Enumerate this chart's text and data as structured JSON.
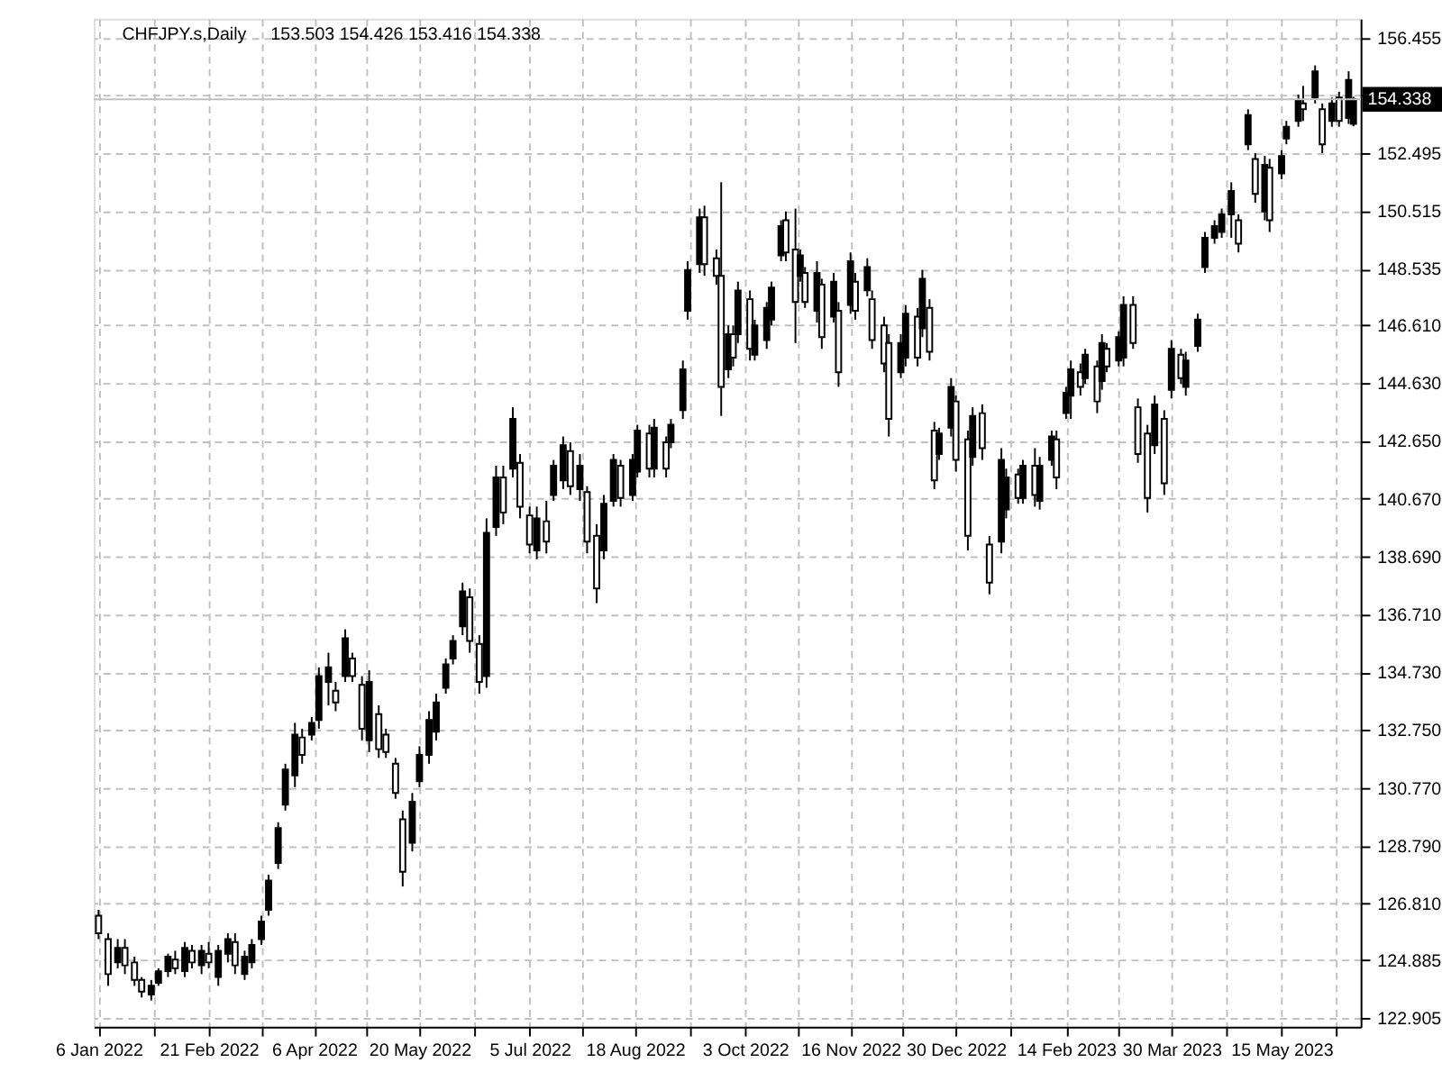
{
  "chart_data": {
    "type": "candlestick",
    "title": "CHFJPY.s,Daily",
    "subtitle": "153.503 154.426 153.416 154.338",
    "x": [
      "2022-01-06",
      "2022-01-10",
      "2022-01-14",
      "2022-01-17",
      "2022-01-21",
      "2022-01-24",
      "2022-01-28",
      "2022-01-31",
      "2022-02-04",
      "2022-02-07",
      "2022-02-11",
      "2022-02-14",
      "2022-02-18",
      "2022-02-21",
      "2022-02-25",
      "2022-03-01",
      "2022-03-04",
      "2022-03-08",
      "2022-03-11",
      "2022-03-15",
      "2022-03-18",
      "2022-03-22",
      "2022-03-25",
      "2022-03-29",
      "2022-04-01",
      "2022-04-05",
      "2022-04-08",
      "2022-04-12",
      "2022-04-15",
      "2022-04-19",
      "2022-04-22",
      "2022-04-26",
      "2022-04-29",
      "2022-05-03",
      "2022-05-06",
      "2022-05-10",
      "2022-05-13",
      "2022-05-17",
      "2022-05-20",
      "2022-05-24",
      "2022-05-27",
      "2022-05-31",
      "2022-06-03",
      "2022-06-07",
      "2022-06-10",
      "2022-06-14",
      "2022-06-17",
      "2022-06-21",
      "2022-06-24",
      "2022-06-28",
      "2022-07-01",
      "2022-07-05",
      "2022-07-08",
      "2022-07-12",
      "2022-07-15",
      "2022-07-19",
      "2022-07-22",
      "2022-07-26",
      "2022-07-29",
      "2022-08-02",
      "2022-08-05",
      "2022-08-09",
      "2022-08-12",
      "2022-08-17",
      "2022-08-19",
      "2022-08-24",
      "2022-08-26",
      "2022-08-31",
      "2022-09-02",
      "2022-09-07",
      "2022-09-09",
      "2022-09-14",
      "2022-09-16",
      "2022-09-21",
      "2022-09-23",
      "2022-09-26",
      "2022-09-28",
      "2022-09-30",
      "2022-10-05",
      "2022-10-07",
      "2022-10-12",
      "2022-10-14",
      "2022-10-18",
      "2022-10-20",
      "2022-10-24",
      "2022-10-26",
      "2022-10-28",
      "2022-11-02",
      "2022-11-04",
      "2022-11-09",
      "2022-11-11",
      "2022-11-16",
      "2022-11-18",
      "2022-11-23",
      "2022-11-25",
      "2022-11-30",
      "2022-12-02",
      "2022-12-07",
      "2022-12-09",
      "2022-12-14",
      "2022-12-16",
      "2022-12-19",
      "2022-12-21",
      "2022-12-23",
      "2022-12-28",
      "2022-12-30",
      "2023-01-04",
      "2023-01-06",
      "2023-01-10",
      "2023-01-13",
      "2023-01-18",
      "2023-01-20",
      "2023-01-25",
      "2023-01-27",
      "2023-02-01",
      "2023-02-03",
      "2023-02-08",
      "2023-02-10",
      "2023-02-14",
      "2023-02-16",
      "2023-02-20",
      "2023-02-22",
      "2023-02-27",
      "2023-03-01",
      "2023-03-03",
      "2023-03-08",
      "2023-03-10",
      "2023-03-14",
      "2023-03-16",
      "2023-03-20",
      "2023-03-23",
      "2023-03-27",
      "2023-03-30",
      "2023-04-03",
      "2023-04-05",
      "2023-04-10",
      "2023-04-13",
      "2023-04-17",
      "2023-04-20",
      "2023-04-24",
      "2023-04-27",
      "2023-05-01",
      "2023-05-04",
      "2023-05-08",
      "2023-05-10",
      "2023-05-15",
      "2023-05-17",
      "2023-05-22",
      "2023-05-24",
      "2023-05-29",
      "2023-06-01",
      "2023-06-05",
      "2023-06-08",
      "2023-06-12",
      "2023-06-14"
    ],
    "ohlc": [
      [
        126.4,
        126.6,
        125.6,
        125.8
      ],
      [
        125.6,
        125.8,
        124.0,
        124.4
      ],
      [
        124.8,
        125.6,
        124.6,
        125.3
      ],
      [
        125.3,
        125.6,
        124.4,
        124.7
      ],
      [
        124.8,
        125.0,
        124.0,
        124.2
      ],
      [
        124.2,
        124.3,
        123.6,
        123.8
      ],
      [
        123.7,
        124.2,
        123.5,
        124.0
      ],
      [
        124.1,
        124.6,
        124.0,
        124.5
      ],
      [
        124.5,
        125.1,
        124.3,
        125.0
      ],
      [
        124.9,
        125.2,
        124.4,
        124.6
      ],
      [
        124.5,
        125.5,
        124.3,
        125.3
      ],
      [
        125.2,
        125.4,
        124.6,
        124.8
      ],
      [
        124.7,
        125.4,
        124.4,
        125.2
      ],
      [
        125.1,
        125.5,
        124.6,
        124.8
      ],
      [
        124.3,
        125.4,
        124.0,
        125.2
      ],
      [
        125.1,
        125.8,
        124.8,
        125.6
      ],
      [
        125.5,
        125.8,
        124.4,
        124.7
      ],
      [
        124.4,
        125.2,
        124.2,
        125.0
      ],
      [
        124.8,
        125.6,
        124.6,
        125.4
      ],
      [
        125.6,
        126.4,
        125.4,
        126.2
      ],
      [
        126.6,
        127.8,
        126.4,
        127.6
      ],
      [
        128.2,
        129.6,
        128.0,
        129.4
      ],
      [
        130.2,
        131.6,
        130.0,
        131.4
      ],
      [
        131.2,
        133.0,
        130.8,
        132.6
      ],
      [
        132.5,
        132.8,
        131.6,
        131.9
      ],
      [
        132.6,
        133.2,
        132.4,
        133.0
      ],
      [
        133.1,
        134.9,
        132.8,
        134.6
      ],
      [
        134.4,
        135.4,
        133.6,
        134.9
      ],
      [
        134.1,
        134.4,
        133.4,
        133.7
      ],
      [
        134.6,
        136.2,
        134.4,
        135.9
      ],
      [
        135.2,
        135.4,
        134.4,
        134.6
      ],
      [
        134.3,
        134.6,
        132.4,
        132.8
      ],
      [
        132.4,
        134.8,
        132.0,
        134.4
      ],
      [
        133.3,
        133.6,
        131.8,
        132.1
      ],
      [
        132.6,
        132.8,
        131.8,
        132.0
      ],
      [
        131.6,
        131.8,
        130.4,
        130.6
      ],
      [
        129.7,
        130.0,
        127.4,
        127.9
      ],
      [
        128.9,
        130.6,
        128.6,
        130.3
      ],
      [
        131.0,
        132.2,
        130.8,
        131.9
      ],
      [
        131.9,
        133.4,
        131.6,
        133.1
      ],
      [
        132.7,
        134.0,
        132.4,
        133.7
      ],
      [
        134.2,
        135.2,
        134.0,
        135.0
      ],
      [
        135.2,
        136.0,
        135.0,
        135.8
      ],
      [
        136.3,
        137.8,
        136.0,
        137.5
      ],
      [
        137.3,
        137.6,
        135.4,
        135.8
      ],
      [
        135.7,
        136.0,
        134.0,
        134.4
      ],
      [
        134.6,
        140.0,
        134.2,
        139.5
      ],
      [
        139.7,
        141.8,
        139.4,
        141.4
      ],
      [
        141.4,
        141.8,
        139.8,
        140.2
      ],
      [
        141.7,
        143.8,
        141.4,
        143.4
      ],
      [
        141.9,
        142.2,
        140.0,
        140.4
      ],
      [
        140.1,
        140.4,
        138.8,
        139.1
      ],
      [
        138.9,
        140.4,
        138.6,
        140.0
      ],
      [
        139.9,
        140.6,
        138.8,
        139.2
      ],
      [
        140.8,
        142.0,
        140.6,
        141.8
      ],
      [
        141.3,
        142.8,
        141.0,
        142.5
      ],
      [
        142.3,
        142.6,
        140.8,
        141.1
      ],
      [
        141.0,
        142.2,
        140.6,
        141.8
      ],
      [
        140.9,
        141.1,
        138.8,
        139.2
      ],
      [
        139.4,
        139.8,
        137.1,
        137.6
      ],
      [
        138.9,
        140.8,
        138.6,
        140.5
      ],
      [
        140.6,
        142.2,
        140.4,
        142.0
      ],
      [
        141.8,
        142.0,
        140.4,
        140.7
      ],
      [
        140.8,
        142.2,
        140.6,
        142.0
      ],
      [
        141.6,
        143.2,
        141.4,
        143.0
      ],
      [
        142.9,
        143.2,
        141.4,
        141.7
      ],
      [
        141.7,
        143.4,
        141.4,
        143.1
      ],
      [
        142.6,
        142.8,
        141.4,
        141.7
      ],
      [
        142.6,
        143.4,
        142.4,
        143.2
      ],
      [
        143.7,
        145.4,
        143.4,
        145.1
      ],
      [
        147.1,
        148.8,
        146.8,
        148.5
      ],
      [
        148.7,
        150.6,
        148.4,
        150.3
      ],
      [
        150.3,
        150.7,
        148.3,
        148.7
      ],
      [
        148.9,
        149.2,
        148.0,
        148.3
      ],
      [
        148.3,
        151.5,
        143.5,
        144.5
      ],
      [
        145.1,
        146.6,
        144.8,
        146.3
      ],
      [
        146.3,
        146.6,
        145.2,
        145.5
      ],
      [
        146.3,
        148.1,
        146.0,
        147.8
      ],
      [
        147.5,
        147.8,
        145.4,
        145.8
      ],
      [
        145.6,
        146.8,
        145.4,
        146.6
      ],
      [
        146.1,
        147.4,
        145.8,
        147.2
      ],
      [
        146.8,
        148.1,
        146.6,
        147.9
      ],
      [
        149.0,
        150.2,
        148.8,
        150.0
      ],
      [
        150.2,
        150.5,
        148.8,
        149.1
      ],
      [
        149.2,
        150.6,
        146.0,
        147.4
      ],
      [
        148.3,
        149.2,
        148.1,
        149.0
      ],
      [
        148.4,
        148.6,
        147.2,
        147.4
      ],
      [
        147.1,
        148.8,
        146.7,
        148.4
      ],
      [
        148.0,
        148.2,
        145.8,
        146.2
      ],
      [
        146.9,
        148.4,
        146.7,
        148.1
      ],
      [
        147.1,
        147.4,
        144.5,
        145.0
      ],
      [
        147.3,
        149.1,
        147.0,
        148.8
      ],
      [
        148.1,
        148.4,
        146.8,
        147.1
      ],
      [
        147.8,
        148.9,
        147.6,
        148.6
      ],
      [
        147.5,
        147.8,
        145.8,
        146.1
      ],
      [
        146.6,
        146.9,
        145.0,
        145.3
      ],
      [
        146.0,
        146.3,
        142.8,
        143.4
      ],
      [
        145.0,
        146.3,
        144.8,
        146.0
      ],
      [
        145.5,
        147.3,
        145.2,
        147.0
      ],
      [
        146.9,
        147.2,
        145.2,
        145.5
      ],
      [
        146.5,
        148.5,
        146.2,
        148.2
      ],
      [
        147.2,
        147.5,
        145.4,
        145.7
      ],
      [
        143.0,
        143.3,
        141.0,
        141.3
      ],
      [
        142.2,
        143.1,
        142.0,
        142.9
      ],
      [
        143.1,
        144.8,
        142.8,
        144.5
      ],
      [
        144.0,
        144.2,
        141.6,
        142.0
      ],
      [
        142.7,
        143.0,
        138.9,
        139.4
      ],
      [
        142.1,
        143.8,
        141.8,
        143.5
      ],
      [
        143.6,
        143.9,
        142.0,
        142.4
      ],
      [
        139.1,
        139.4,
        137.4,
        137.8
      ],
      [
        139.2,
        142.4,
        138.8,
        142.0
      ],
      [
        140.3,
        141.7,
        140.0,
        141.4
      ],
      [
        141.5,
        141.7,
        140.5,
        140.7
      ],
      [
        140.7,
        142.0,
        140.5,
        141.8
      ],
      [
        141.8,
        142.4,
        140.4,
        140.8
      ],
      [
        140.6,
        142.1,
        140.3,
        141.8
      ],
      [
        142.0,
        143.0,
        141.8,
        142.8
      ],
      [
        142.7,
        143.0,
        141.0,
        141.4
      ],
      [
        143.6,
        144.5,
        143.4,
        144.3
      ],
      [
        144.2,
        145.4,
        143.4,
        145.1
      ],
      [
        145.0,
        145.3,
        144.2,
        144.5
      ],
      [
        144.8,
        145.8,
        144.6,
        145.6
      ],
      [
        145.2,
        145.4,
        143.6,
        144.0
      ],
      [
        144.7,
        146.3,
        144.4,
        146.0
      ],
      [
        145.8,
        146.0,
        145.0,
        145.2
      ],
      [
        145.4,
        146.4,
        145.2,
        146.2
      ],
      [
        145.5,
        147.6,
        145.2,
        147.3
      ],
      [
        147.3,
        147.6,
        145.8,
        146.0
      ],
      [
        143.8,
        144.1,
        141.9,
        142.2
      ],
      [
        142.9,
        143.2,
        140.2,
        140.7
      ],
      [
        142.5,
        144.2,
        142.2,
        143.9
      ],
      [
        143.4,
        143.7,
        140.8,
        141.2
      ],
      [
        144.4,
        146.1,
        144.1,
        145.8
      ],
      [
        145.6,
        145.8,
        144.6,
        144.8
      ],
      [
        144.5,
        145.7,
        144.2,
        145.4
      ],
      [
        145.9,
        147.0,
        145.7,
        146.8
      ],
      [
        148.6,
        149.8,
        148.4,
        149.6
      ],
      [
        149.6,
        150.2,
        149.4,
        150.0
      ],
      [
        149.8,
        150.6,
        149.6,
        150.4
      ],
      [
        150.4,
        151.5,
        149.6,
        151.2
      ],
      [
        150.2,
        150.4,
        149.1,
        149.4
      ],
      [
        152.8,
        154.0,
        152.6,
        153.8
      ],
      [
        152.3,
        152.5,
        150.8,
        151.1
      ],
      [
        150.5,
        152.4,
        150.2,
        152.1
      ],
      [
        152.0,
        152.3,
        149.8,
        150.2
      ],
      [
        151.8,
        152.6,
        151.6,
        152.4
      ],
      [
        153.0,
        153.6,
        152.8,
        153.4
      ],
      [
        153.6,
        154.5,
        153.4,
        154.3
      ],
      [
        154.2,
        154.8,
        153.6,
        154.0
      ],
      [
        154.4,
        155.5,
        154.2,
        155.3
      ],
      [
        154.0,
        154.2,
        152.5,
        152.8
      ],
      [
        153.6,
        154.4,
        153.4,
        154.2
      ],
      [
        154.4,
        154.6,
        153.4,
        153.6
      ],
      [
        153.7,
        155.3,
        153.5,
        155.0
      ],
      [
        153.503,
        154.426,
        153.416,
        154.338
      ]
    ],
    "color": "#000000",
    "xlim": [
      "2022-01-04",
      "2023-06-17"
    ],
    "xticks": [
      {
        "value": "2022-01-06",
        "label": "6 Jan 2022"
      },
      {
        "value": "2022-01-29",
        "label": null
      },
      {
        "value": "2022-02-21",
        "label": "21 Feb 2022"
      },
      {
        "value": "2022-03-15",
        "label": null
      },
      {
        "value": "2022-04-06",
        "label": "6 Apr 2022"
      },
      {
        "value": "2022-04-28",
        "label": null
      },
      {
        "value": "2022-05-20",
        "label": "20 May 2022"
      },
      {
        "value": "2022-06-12",
        "label": null
      },
      {
        "value": "2022-07-05",
        "label": "5 Jul 2022"
      },
      {
        "value": "2022-07-27",
        "label": null
      },
      {
        "value": "2022-08-18",
        "label": "18 Aug 2022"
      },
      {
        "value": "2022-09-10",
        "label": null
      },
      {
        "value": "2022-10-03",
        "label": "3 Oct 2022"
      },
      {
        "value": "2022-10-25",
        "label": null
      },
      {
        "value": "2022-11-16",
        "label": "16 Nov 2022"
      },
      {
        "value": "2022-12-08",
        "label": null
      },
      {
        "value": "2022-12-30",
        "label": "30 Dec 2022"
      },
      {
        "value": "2023-01-22",
        "label": null
      },
      {
        "value": "2023-02-14",
        "label": "14 Feb 2023"
      },
      {
        "value": "2023-03-08",
        "label": null
      },
      {
        "value": "2023-03-30",
        "label": "30 Mar 2023"
      },
      {
        "value": "2023-04-22",
        "label": null
      },
      {
        "value": "2023-05-15",
        "label": "15 May 2023"
      },
      {
        "value": "2023-06-07",
        "label": null
      }
    ],
    "ylim": [
      122.6,
      157.1
    ],
    "yticks": [
      122.905,
      124.885,
      {
        "value": 126.81,
        "label": "126.810"
      },
      {
        "value": 128.79,
        "label": "128.790"
      },
      {
        "value": 130.77,
        "label": "130.770"
      },
      {
        "value": 132.75,
        "label": "132.750"
      },
      {
        "value": 134.73,
        "label": "134.730"
      },
      {
        "value": 136.71,
        "label": "136.710"
      },
      {
        "value": 138.69,
        "label": "138.690"
      },
      {
        "value": 140.67,
        "label": "140.670"
      },
      {
        "value": 142.65,
        "label": "142.650"
      },
      {
        "value": 144.63,
        "label": "144.630"
      },
      {
        "value": 146.61,
        "label": "146.610"
      },
      148.535,
      150.515,
      152.495,
      {
        "value": 154.475,
        "label": null
      },
      156.455
    ],
    "ref_lines": [
      {
        "axis": "y",
        "value": 154.338,
        "label": "154.338",
        "color": "#c0c0c0"
      }
    ],
    "grid": true
  }
}
